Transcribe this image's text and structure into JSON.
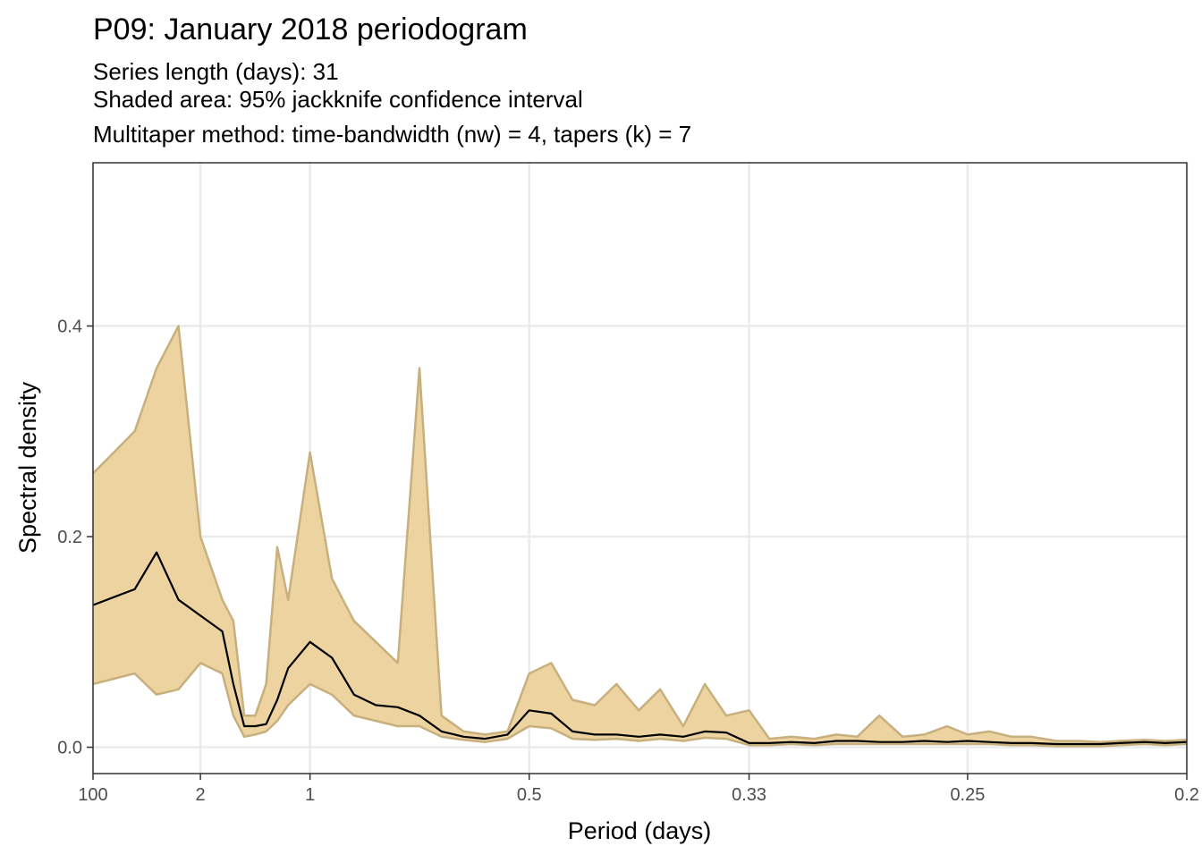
{
  "chart_data": {
    "type": "area",
    "title": "P09: January 2018 periodogram",
    "subtitle_lines": [
      "Series length (days): 31",
      "Shaded area: 95% jackknife confidence interval",
      "Multitaper method: time-bandwidth (nw) = 4, tapers (k) = 7"
    ],
    "xlabel": "Period (days)",
    "ylabel": "Spectral density",
    "x_scale": "reciprocal",
    "x_unit": "Period (days)",
    "xlim": [
      100,
      0.2
    ],
    "ylim": [
      -0.025,
      0.555
    ],
    "x_ticks": [
      {
        "value": 100,
        "label": "100"
      },
      {
        "value": 2,
        "label": "2"
      },
      {
        "value": 1,
        "label": "1"
      },
      {
        "value": 0.5,
        "label": "0.5"
      },
      {
        "value": 0.333,
        "label": "0.33"
      },
      {
        "value": 0.25,
        "label": "0.25"
      },
      {
        "value": 0.2,
        "label": "0.2"
      }
    ],
    "y_ticks": [
      {
        "value": 0.0,
        "label": "0.0"
      },
      {
        "value": 0.2,
        "label": "0.2"
      },
      {
        "value": 0.4,
        "label": "0.4"
      }
    ],
    "grid": true,
    "colors": {
      "band_fill": "#ecd3a0",
      "band_edge": "#c8b07e",
      "line": "#000000",
      "grid": "#ebebeb",
      "panel_border": "#333333"
    },
    "series": {
      "period": [
        100,
        5.0,
        3.333,
        2.5,
        2.0,
        1.667,
        1.538,
        1.429,
        1.333,
        1.25,
        1.176,
        1.111,
        1.0,
        0.909,
        0.833,
        0.769,
        0.714,
        0.667,
        0.625,
        0.588,
        0.556,
        0.526,
        0.5,
        0.476,
        0.455,
        0.435,
        0.417,
        0.4,
        0.385,
        0.37,
        0.357,
        0.345,
        0.333,
        0.323,
        0.313,
        0.303,
        0.294,
        0.286,
        0.278,
        0.27,
        0.263,
        0.256,
        0.25,
        0.244,
        0.238,
        0.233,
        0.227,
        0.222,
        0.217,
        0.213,
        0.208,
        0.204,
        0.2
      ],
      "estimate": [
        0.135,
        0.15,
        0.185,
        0.14,
        0.125,
        0.11,
        0.06,
        0.02,
        0.02,
        0.022,
        0.045,
        0.075,
        0.1,
        0.085,
        0.05,
        0.04,
        0.038,
        0.03,
        0.015,
        0.01,
        0.008,
        0.012,
        0.035,
        0.032,
        0.015,
        0.012,
        0.012,
        0.01,
        0.012,
        0.01,
        0.015,
        0.014,
        0.004,
        0.004,
        0.005,
        0.004,
        0.006,
        0.006,
        0.005,
        0.005,
        0.006,
        0.005,
        0.006,
        0.005,
        0.004,
        0.004,
        0.003,
        0.003,
        0.003,
        0.004,
        0.005,
        0.004,
        0.005
      ],
      "upper": [
        0.26,
        0.3,
        0.36,
        0.4,
        0.2,
        0.14,
        0.12,
        0.03,
        0.03,
        0.06,
        0.19,
        0.14,
        0.28,
        0.16,
        0.12,
        0.1,
        0.08,
        0.36,
        0.03,
        0.015,
        0.012,
        0.015,
        0.07,
        0.08,
        0.045,
        0.04,
        0.06,
        0.035,
        0.055,
        0.02,
        0.06,
        0.03,
        0.035,
        0.008,
        0.01,
        0.008,
        0.012,
        0.01,
        0.03,
        0.01,
        0.012,
        0.02,
        0.012,
        0.015,
        0.01,
        0.01,
        0.006,
        0.006,
        0.005,
        0.006,
        0.007,
        0.006,
        0.007
      ],
      "lower": [
        0.06,
        0.07,
        0.05,
        0.055,
        0.08,
        0.07,
        0.03,
        0.01,
        0.012,
        0.015,
        0.025,
        0.04,
        0.06,
        0.05,
        0.03,
        0.025,
        0.02,
        0.02,
        0.01,
        0.007,
        0.005,
        0.008,
        0.02,
        0.018,
        0.008,
        0.007,
        0.008,
        0.006,
        0.008,
        0.006,
        0.009,
        0.008,
        0.002,
        0.002,
        0.003,
        0.002,
        0.003,
        0.003,
        0.003,
        0.003,
        0.003,
        0.003,
        0.003,
        0.003,
        0.002,
        0.002,
        0.001,
        0.001,
        0.001,
        0.002,
        0.003,
        0.002,
        0.003
      ]
    }
  }
}
